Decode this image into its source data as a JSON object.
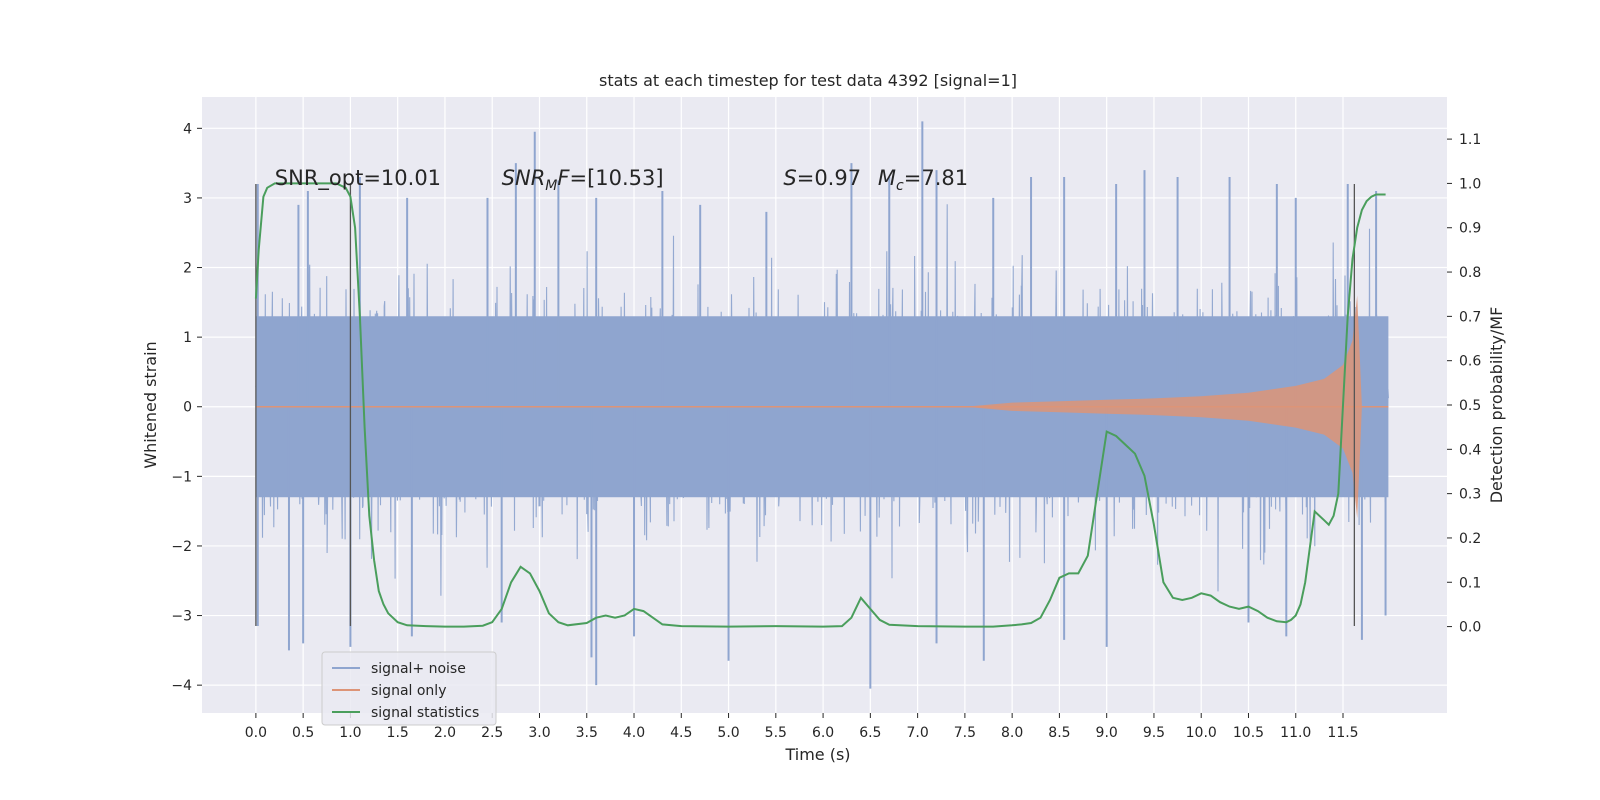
{
  "chart_data": {
    "type": "line",
    "title": "stats at each timestep for test data 4392 [signal=1]",
    "xlabel": "Time (s)",
    "ylabel": "Whitened strain",
    "y2label": "Detection probability/MF",
    "xlim": [
      -0.57,
      12.6
    ],
    "ylim": [
      -4.4,
      4.45
    ],
    "y2lim": [
      -0.195,
      1.195
    ],
    "xticks": [
      0.0,
      0.5,
      1.0,
      1.5,
      2.0,
      2.5,
      3.0,
      3.5,
      4.0,
      4.5,
      5.0,
      5.5,
      6.0,
      6.5,
      7.0,
      7.5,
      8.0,
      8.5,
      9.0,
      9.5,
      10.0,
      10.5,
      11.0,
      11.5
    ],
    "xtick_labels": [
      "0.0",
      "0.5",
      "1.0",
      "1.5",
      "2.0",
      "2.5",
      "3.0",
      "3.5",
      "4.0",
      "4.5",
      "5.0",
      "5.5",
      "6.0",
      "6.5",
      "7.0",
      "7.5",
      "8.0",
      "8.5",
      "9.0",
      "9.5",
      "10.0",
      "10.5",
      "11.0",
      "11.5"
    ],
    "yticks": [
      -4,
      -3,
      -2,
      -1,
      0,
      1,
      2,
      3,
      4
    ],
    "ytick_labels": [
      "−4",
      "−3",
      "−2",
      "−1",
      "0",
      "1",
      "2",
      "3",
      "4"
    ],
    "y2ticks": [
      0.0,
      0.1,
      0.2,
      0.3,
      0.4,
      0.5,
      0.6,
      0.7,
      0.8,
      0.9,
      1.0,
      1.1
    ],
    "y2tick_labels": [
      "0.0",
      "0.1",
      "0.2",
      "0.3",
      "0.4",
      "0.5",
      "0.6",
      "0.7",
      "0.8",
      "0.9",
      "1.0",
      "1.1"
    ],
    "grid": true,
    "legend_position": "lower-left",
    "annotations": [
      {
        "id": "snr-opt",
        "text": "SNR_opt=10.01"
      },
      {
        "id": "snr-mf",
        "text": "SNR_MF=[10.53]"
      },
      {
        "id": "s-stat",
        "text": "S=0.97"
      },
      {
        "id": "mc",
        "text": "Mc=7.81"
      }
    ],
    "vlines_x": [
      0.0,
      1.0,
      11.62
    ],
    "series": [
      {
        "name": "signal+ noise",
        "color": "#8fa5cf",
        "kind": "noise-strain",
        "x_range": [
          0.0,
          11.98
        ],
        "core_band": [
          -1.3,
          1.3
        ],
        "typical_band": [
          -2.0,
          2.0
        ],
        "peaks": [
          {
            "x": 0.02,
            "y": 3.2
          },
          {
            "x": 0.45,
            "y": 2.9
          },
          {
            "x": 0.55,
            "y": 3.1
          },
          {
            "x": 1.1,
            "y": 3.3
          },
          {
            "x": 1.6,
            "y": 3.0
          },
          {
            "x": 2.45,
            "y": 3.0
          },
          {
            "x": 2.75,
            "y": 3.5
          },
          {
            "x": 2.95,
            "y": 3.95
          },
          {
            "x": 3.2,
            "y": 3.25
          },
          {
            "x": 3.6,
            "y": 3.0
          },
          {
            "x": 4.3,
            "y": 3.1
          },
          {
            "x": 4.7,
            "y": 2.9
          },
          {
            "x": 5.4,
            "y": 2.8
          },
          {
            "x": 6.3,
            "y": 3.5
          },
          {
            "x": 6.7,
            "y": 3.3
          },
          {
            "x": 7.05,
            "y": 4.1
          },
          {
            "x": 7.2,
            "y": 3.4
          },
          {
            "x": 7.8,
            "y": 3.0
          },
          {
            "x": 8.2,
            "y": 3.3
          },
          {
            "x": 8.55,
            "y": 3.3
          },
          {
            "x": 9.1,
            "y": 3.2
          },
          {
            "x": 9.4,
            "y": 3.4
          },
          {
            "x": 9.75,
            "y": 3.3
          },
          {
            "x": 10.3,
            "y": 3.3
          },
          {
            "x": 10.8,
            "y": 3.2
          },
          {
            "x": 11.0,
            "y": 3.0
          },
          {
            "x": 11.55,
            "y": 3.2
          },
          {
            "x": 11.85,
            "y": 3.1
          }
        ],
        "troughs": [
          {
            "x": 0.02,
            "y": -3.15
          },
          {
            "x": 0.35,
            "y": -3.5
          },
          {
            "x": 0.5,
            "y": -3.4
          },
          {
            "x": 1.0,
            "y": -3.45
          },
          {
            "x": 1.65,
            "y": -3.3
          },
          {
            "x": 2.6,
            "y": -3.1
          },
          {
            "x": 3.55,
            "y": -3.6
          },
          {
            "x": 3.6,
            "y": -4.0
          },
          {
            "x": 4.0,
            "y": -3.3
          },
          {
            "x": 5.0,
            "y": -3.65
          },
          {
            "x": 6.5,
            "y": -4.05
          },
          {
            "x": 7.2,
            "y": -3.4
          },
          {
            "x": 7.7,
            "y": -3.65
          },
          {
            "x": 8.55,
            "y": -3.35
          },
          {
            "x": 9.0,
            "y": -3.45
          },
          {
            "x": 10.5,
            "y": -3.1
          },
          {
            "x": 10.9,
            "y": -3.3
          },
          {
            "x": 11.7,
            "y": -3.35
          },
          {
            "x": 11.95,
            "y": -3.0
          }
        ]
      },
      {
        "name": "signal only",
        "color": "#dd9477",
        "kind": "chirp",
        "x": [
          7.5,
          8.0,
          8.5,
          9.0,
          9.5,
          10.0,
          10.5,
          11.0,
          11.3,
          11.5,
          11.6,
          11.65,
          11.7
        ],
        "amplitude": [
          0.0,
          0.06,
          0.08,
          0.1,
          0.12,
          0.15,
          0.2,
          0.3,
          0.4,
          0.6,
          0.95,
          1.6,
          0.0
        ]
      },
      {
        "name": "signal statistics",
        "color": "#4a9e5c",
        "axis": "right",
        "x": [
          0.0,
          0.03,
          0.08,
          0.12,
          0.2,
          0.35,
          0.5,
          0.7,
          0.85,
          0.95,
          1.0,
          1.05,
          1.1,
          1.15,
          1.2,
          1.25,
          1.3,
          1.35,
          1.4,
          1.5,
          1.6,
          1.8,
          2.0,
          2.2,
          2.4,
          2.5,
          2.6,
          2.7,
          2.8,
          2.9,
          3.0,
          3.1,
          3.2,
          3.3,
          3.5,
          3.6,
          3.7,
          3.8,
          3.9,
          4.0,
          4.1,
          4.2,
          4.3,
          4.5,
          5.0,
          5.5,
          6.0,
          6.2,
          6.3,
          6.4,
          6.5,
          6.6,
          6.7,
          7.0,
          7.5,
          7.8,
          8.0,
          8.1,
          8.2,
          8.3,
          8.4,
          8.5,
          8.6,
          8.7,
          8.8,
          8.9,
          9.0,
          9.1,
          9.2,
          9.3,
          9.4,
          9.5,
          9.6,
          9.7,
          9.8,
          9.9,
          10.0,
          10.1,
          10.2,
          10.3,
          10.4,
          10.5,
          10.6,
          10.7,
          10.8,
          10.9,
          10.95,
          11.0,
          11.05,
          11.1,
          11.2,
          11.3,
          11.35,
          11.4,
          11.45,
          11.5,
          11.55,
          11.6,
          11.65,
          11.7,
          11.75,
          11.8,
          11.85,
          11.9,
          11.95
        ],
        "values": [
          0.74,
          0.85,
          0.97,
          0.99,
          1.0,
          1.0,
          1.0,
          1.0,
          1.0,
          0.99,
          0.97,
          0.9,
          0.7,
          0.45,
          0.25,
          0.15,
          0.08,
          0.05,
          0.03,
          0.01,
          0.003,
          0.001,
          0.0,
          0.0,
          0.002,
          0.01,
          0.04,
          0.1,
          0.135,
          0.12,
          0.08,
          0.03,
          0.01,
          0.003,
          0.008,
          0.02,
          0.025,
          0.02,
          0.025,
          0.04,
          0.035,
          0.02,
          0.005,
          0.001,
          0.0,
          0.001,
          0.0,
          0.001,
          0.02,
          0.065,
          0.04,
          0.015,
          0.004,
          0.001,
          0.0,
          0.0,
          0.003,
          0.005,
          0.008,
          0.02,
          0.06,
          0.11,
          0.12,
          0.12,
          0.16,
          0.3,
          0.44,
          0.43,
          0.41,
          0.39,
          0.34,
          0.23,
          0.1,
          0.065,
          0.06,
          0.065,
          0.075,
          0.07,
          0.055,
          0.045,
          0.04,
          0.045,
          0.035,
          0.02,
          0.012,
          0.01,
          0.015,
          0.025,
          0.05,
          0.1,
          0.26,
          0.24,
          0.23,
          0.25,
          0.3,
          0.5,
          0.7,
          0.83,
          0.9,
          0.94,
          0.96,
          0.97,
          0.975,
          0.975,
          0.975
        ]
      }
    ]
  }
}
